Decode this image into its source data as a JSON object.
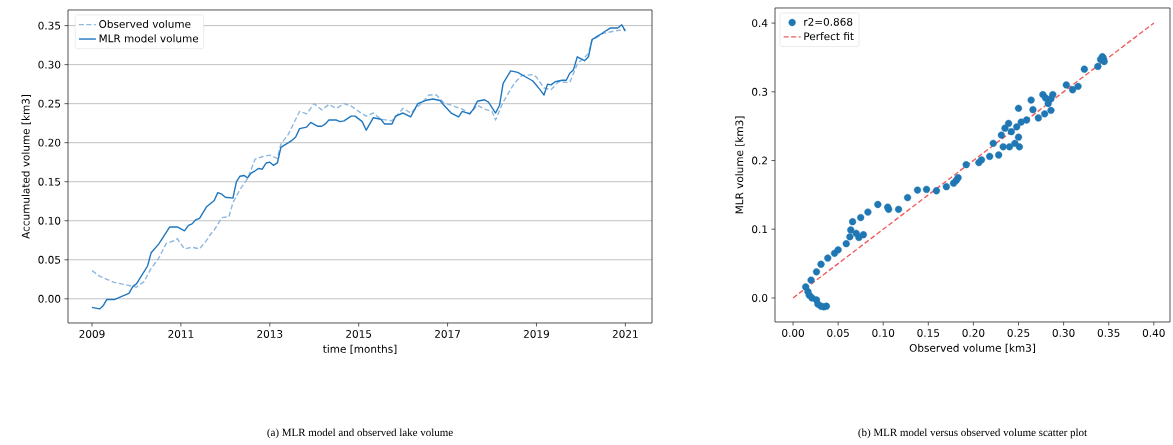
{
  "chart_data": [
    {
      "type": "line",
      "xlabel": "time [months]",
      "ylabel": "Accumulated volume [km3]",
      "xlim": [
        "2008-06-16",
        "2021-08-08"
      ],
      "xticks": [
        "2009",
        "2011",
        "2013",
        "2015",
        "2017",
        "2019",
        "2021"
      ],
      "ylim": [
        -0.031,
        0.37
      ],
      "yticks": [
        {
          "value": 0,
          "label": "0.00"
        },
        {
          "value": 0.05,
          "label": "0.05"
        },
        {
          "value": 0.1,
          "label": "0.10"
        },
        {
          "value": 0.15,
          "label": "0.15"
        },
        {
          "value": 0.2,
          "label": "0.20"
        },
        {
          "value": 0.25,
          "label": "0.25"
        },
        {
          "value": 0.3,
          "label": "0.30"
        },
        {
          "value": 0.35,
          "label": "0.35"
        }
      ],
      "grid": "y",
      "legend": "top left",
      "series": [
        {
          "name": "Observed volume",
          "color": "#8fb8de",
          "line_style": "dashed",
          "x": [
            "2009-01",
            "2009-03",
            "2009-05",
            "2009-07",
            "2009-10",
            "2010-01",
            "2010-03",
            "2010-05",
            "2010-07",
            "2010-09",
            "2010-11",
            "2010-12",
            "2011-02",
            "2011-04",
            "2011-06",
            "2011-08",
            "2011-09",
            "2011-10",
            "2011-12",
            "2012-02",
            "2012-03",
            "2012-05",
            "2012-07",
            "2012-09",
            "2012-11",
            "2013-01",
            "2013-03",
            "2013-04",
            "2013-06",
            "2013-09",
            "2013-11",
            "2014-01",
            "2014-03",
            "2014-05",
            "2014-07",
            "2014-09",
            "2014-11",
            "2015-01",
            "2015-03",
            "2015-05",
            "2015-07",
            "2015-10",
            "2015-11",
            "2016-01",
            "2016-03",
            "2016-06",
            "2016-08",
            "2016-10",
            "2016-12",
            "2017-02",
            "2017-05",
            "2017-07",
            "2017-09",
            "2017-11",
            "2018-01",
            "2018-02",
            "2018-04",
            "2018-07",
            "2018-09",
            "2018-12",
            "2019-01",
            "2019-03",
            "2019-05",
            "2019-07",
            "2019-10",
            "2019-12",
            "2020-03",
            "2020-04",
            "2020-07",
            "2020-10",
            "2021-01"
          ],
          "values": [
            0.036,
            0.029,
            0.025,
            0.021,
            0.018,
            0.015,
            0.022,
            0.039,
            0.052,
            0.071,
            0.074,
            0.077,
            0.064,
            0.066,
            0.064,
            0.075,
            0.083,
            0.088,
            0.104,
            0.105,
            0.123,
            0.14,
            0.154,
            0.179,
            0.182,
            0.184,
            0.18,
            0.198,
            0.211,
            0.24,
            0.237,
            0.25,
            0.242,
            0.249,
            0.244,
            0.25,
            0.247,
            0.24,
            0.234,
            0.238,
            0.23,
            0.228,
            0.233,
            0.244,
            0.238,
            0.251,
            0.261,
            0.261,
            0.251,
            0.248,
            0.243,
            0.237,
            0.248,
            0.243,
            0.24,
            0.229,
            0.252,
            0.276,
            0.286,
            0.287,
            0.284,
            0.27,
            0.268,
            0.278,
            0.277,
            0.301,
            0.314,
            0.331,
            0.34,
            0.343,
            0.345
          ]
        },
        {
          "name": "MLR model volume",
          "color": "#1f77c0",
          "line_style": "solid",
          "x": [
            "2009-01",
            "2009-03",
            "2009-04",
            "2009-05",
            "2009-07",
            "2009-09",
            "2009-11",
            "2009-12",
            "2010-01",
            "2010-04",
            "2010-05",
            "2010-07",
            "2010-09",
            "2010-10",
            "2010-12",
            "2011-02",
            "2011-03",
            "2011-04",
            "2011-05",
            "2011-06",
            "2011-08",
            "2011-10",
            "2011-11",
            "2011-12",
            "2012-01",
            "2012-03",
            "2012-04",
            "2012-05",
            "2012-06",
            "2012-07",
            "2012-08",
            "2012-09",
            "2012-10",
            "2012-11",
            "2012-12",
            "2013-01",
            "2013-02",
            "2013-03",
            "2013-04",
            "2013-06",
            "2013-07",
            "2013-08",
            "2013-09",
            "2013-11",
            "2013-12",
            "2014-02",
            "2014-03",
            "2014-04",
            "2014-05",
            "2014-07",
            "2014-08",
            "2014-09",
            "2014-11",
            "2014-12",
            "2015-02",
            "2015-03",
            "2015-05",
            "2015-07",
            "2015-08",
            "2015-10",
            "2015-11",
            "2016-01",
            "2016-03",
            "2016-05",
            "2016-07",
            "2016-09",
            "2016-11",
            "2016-12",
            "2017-02",
            "2017-04",
            "2017-05",
            "2017-07",
            "2017-08",
            "2017-09",
            "2017-11",
            "2017-12",
            "2018-02",
            "2018-03",
            "2018-04",
            "2018-06",
            "2018-08",
            "2018-09",
            "2018-12",
            "2019-02",
            "2019-03",
            "2019-04",
            "2019-05",
            "2019-06",
            "2019-08",
            "2019-09",
            "2019-10",
            "2019-11",
            "2019-12",
            "2020-02",
            "2020-03",
            "2020-04",
            "2020-06",
            "2020-08",
            "2020-09",
            "2020-11",
            "2020-12",
            "2021-01"
          ],
          "values": [
            -0.011,
            -0.013,
            -0.009,
            -0.001,
            -0.001,
            0.003,
            0.007,
            0.016,
            0.019,
            0.042,
            0.059,
            0.07,
            0.085,
            0.092,
            0.092,
            0.087,
            0.094,
            0.096,
            0.101,
            0.103,
            0.118,
            0.126,
            0.136,
            0.134,
            0.13,
            0.129,
            0.15,
            0.157,
            0.158,
            0.155,
            0.161,
            0.164,
            0.167,
            0.166,
            0.174,
            0.175,
            0.171,
            0.174,
            0.194,
            0.2,
            0.203,
            0.207,
            0.218,
            0.22,
            0.226,
            0.221,
            0.221,
            0.224,
            0.229,
            0.229,
            0.227,
            0.228,
            0.234,
            0.234,
            0.227,
            0.216,
            0.232,
            0.23,
            0.224,
            0.224,
            0.234,
            0.238,
            0.233,
            0.25,
            0.254,
            0.256,
            0.254,
            0.248,
            0.238,
            0.233,
            0.24,
            0.237,
            0.243,
            0.253,
            0.255,
            0.252,
            0.238,
            0.248,
            0.276,
            0.292,
            0.29,
            0.287,
            0.279,
            0.268,
            0.261,
            0.275,
            0.274,
            0.278,
            0.28,
            0.28,
            0.289,
            0.293,
            0.31,
            0.305,
            0.31,
            0.332,
            0.338,
            0.344,
            0.347,
            0.347,
            0.351,
            0.343
          ]
        }
      ],
      "annotations": [
        "(a) MLR model and observed lake volume"
      ]
    },
    {
      "type": "scatter",
      "xlabel": "Observed volume [km3]",
      "ylabel": "MLR volume [km3]",
      "xlim": [
        -0.02,
        0.418
      ],
      "xticks": [
        {
          "value": 0,
          "label": "0.00"
        },
        {
          "value": 0.05,
          "label": "0.05"
        },
        {
          "value": 0.1,
          "label": "0.10"
        },
        {
          "value": 0.15,
          "label": "0.15"
        },
        {
          "value": 0.2,
          "label": "0.20"
        },
        {
          "value": 0.25,
          "label": "0.25"
        },
        {
          "value": 0.3,
          "label": "0.30"
        },
        {
          "value": 0.35,
          "label": "0.35"
        },
        {
          "value": 0.4,
          "label": "0.40"
        }
      ],
      "ylim": [
        -0.035,
        0.422
      ],
      "yticks": [
        {
          "value": 0,
          "label": "0.0"
        },
        {
          "value": 0.1,
          "label": "0.1"
        },
        {
          "value": 0.2,
          "label": "0.2"
        },
        {
          "value": 0.3,
          "label": "0.3"
        },
        {
          "value": 0.4,
          "label": "0.4"
        }
      ],
      "legend": "top left",
      "series": [
        {
          "name": "r2=0.868",
          "color": "#1f77b4",
          "x": [
            0.014,
            0.0165,
            0.018,
            0.021,
            0.026,
            0.0275,
            0.031,
            0.037,
            0.034,
            0.02,
            0.026,
            0.031,
            0.0385,
            0.046,
            0.05,
            0.059,
            0.063,
            0.064,
            0.066,
            0.07,
            0.073,
            0.078,
            0.075,
            0.083,
            0.094,
            0.105,
            0.106,
            0.117,
            0.127,
            0.138,
            0.148,
            0.159,
            0.17,
            0.178,
            0.181,
            0.183,
            0.192,
            0.206,
            0.209,
            0.218,
            0.222,
            0.228,
            0.231,
            0.235,
            0.239,
            0.242,
            0.233,
            0.24,
            0.246,
            0.251,
            0.25,
            0.248,
            0.253,
            0.259,
            0.25,
            0.264,
            0.266,
            0.272,
            0.277,
            0.28,
            0.283,
            0.279,
            0.286,
            0.288,
            0.286,
            0.303,
            0.31,
            0.316,
            0.323,
            0.338,
            0.341,
            0.343,
            0.344,
            0.345
          ],
          "values": [
            0.016,
            0.009,
            0.004,
            0.0,
            -0.003,
            -0.009,
            -0.012,
            -0.012,
            -0.013,
            0.026,
            0.038,
            0.049,
            0.058,
            0.065,
            0.07,
            0.079,
            0.089,
            0.099,
            0.111,
            0.094,
            0.088,
            0.092,
            0.117,
            0.125,
            0.136,
            0.132,
            0.129,
            0.129,
            0.146,
            0.157,
            0.158,
            0.156,
            0.162,
            0.167,
            0.171,
            0.175,
            0.194,
            0.197,
            0.201,
            0.206,
            0.225,
            0.208,
            0.237,
            0.247,
            0.254,
            0.242,
            0.22,
            0.22,
            0.225,
            0.22,
            0.234,
            0.249,
            0.256,
            0.259,
            0.276,
            0.288,
            0.274,
            0.262,
            0.296,
            0.291,
            0.283,
            0.268,
            0.273,
            0.296,
            0.29,
            0.31,
            0.303,
            0.308,
            0.333,
            0.337,
            0.347,
            0.351,
            0.349,
            0.344
          ]
        },
        {
          "name": "Perfect fit",
          "type": "line",
          "color": "#f25c5c",
          "line_style": "dashed",
          "x": [
            0,
            0.4
          ],
          "values": [
            0,
            0.4
          ]
        }
      ],
      "annotations": [
        "(b) MLR model versus observed volume scatter plot"
      ]
    }
  ]
}
